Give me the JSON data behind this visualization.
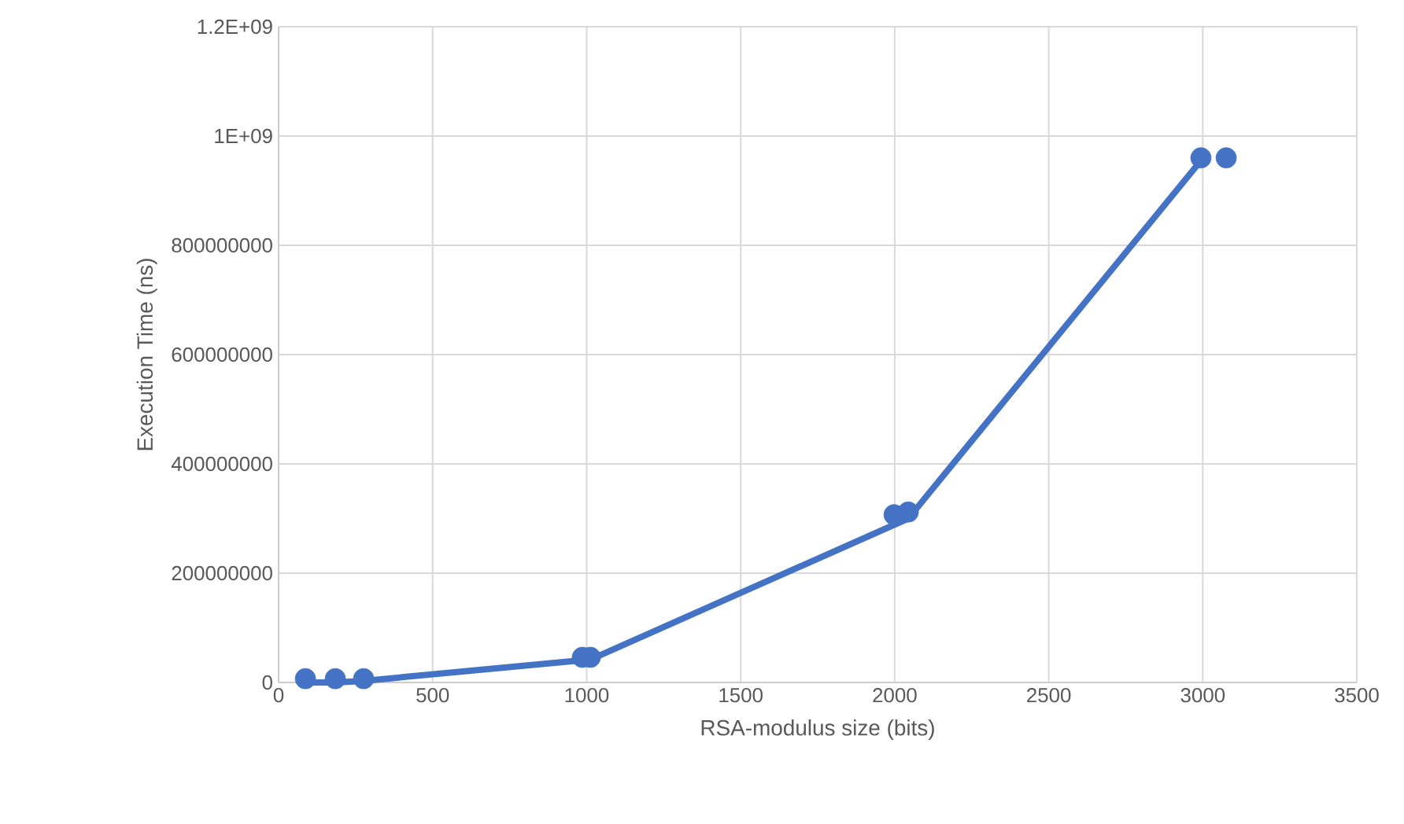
{
  "chart_data": {
    "type": "scatter",
    "xlabel": "RSA-modulus size (bits)",
    "ylabel": "Execution Time (ns)",
    "xlim": [
      0,
      3500
    ],
    "ylim": [
      0,
      1200000000
    ],
    "xticks": [
      0,
      500,
      1000,
      1500,
      2000,
      2500,
      3000,
      3500
    ],
    "yticks": [
      0,
      200000000,
      400000000,
      600000000,
      800000000,
      {
        "value": 1000000000,
        "label": "1E+09"
      },
      {
        "value": 1200000000,
        "label": "1.2E+09"
      }
    ],
    "grid": true,
    "series": [
      {
        "type": "line",
        "color": "#4472c4",
        "marker": "none",
        "line_style": "solid",
        "x": [
          87,
          184,
          276,
          1012,
          2044,
          2994
        ],
        "values": [
          0,
          0,
          3000000,
          42000000,
          300000000,
          955000000
        ]
      },
      {
        "type": "scatter",
        "color": "#4472c4",
        "marker": "circle",
        "x": [
          87,
          184,
          276,
          986,
          1012,
          1998,
          2044,
          2994,
          3076
        ],
        "values": [
          7000000,
          7000000,
          7000000,
          46000000,
          46000000,
          307000000,
          312000000,
          960000000,
          960000000
        ]
      }
    ]
  }
}
